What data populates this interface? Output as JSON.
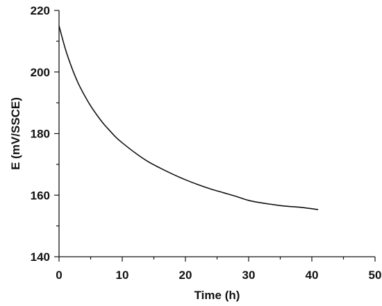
{
  "chart_data": {
    "type": "line",
    "title": "",
    "xlabel": "Time (h)",
    "ylabel": "E (mV/SSCE)",
    "xlim": [
      0,
      50
    ],
    "ylim": [
      140,
      220
    ],
    "xticks": [
      0,
      10,
      20,
      30,
      40,
      50
    ],
    "yticks": [
      140,
      160,
      180,
      200,
      220
    ],
    "x_tick_labels": [
      "0",
      "10",
      "20",
      "30",
      "40",
      "50"
    ],
    "y_tick_labels": [
      "140",
      "160",
      "180",
      "200",
      "220"
    ],
    "grid": false,
    "legend": "none",
    "line_color": "#111111",
    "series": [
      {
        "x": [
          0,
          1,
          2,
          3,
          4,
          5,
          6,
          7,
          8,
          9,
          10,
          12,
          14,
          16,
          18,
          20,
          22,
          24,
          26,
          28,
          30,
          32,
          34,
          36,
          38,
          40,
          41
        ],
        "y": [
          215,
          207.5,
          201.5,
          196.5,
          192.5,
          189,
          186,
          183.3,
          181,
          178.8,
          177,
          173.8,
          171,
          168.8,
          166.8,
          165,
          163.4,
          162,
          160.8,
          159.6,
          158.3,
          157.5,
          156.9,
          156.4,
          156.1,
          155.6,
          155.3
        ]
      }
    ]
  }
}
